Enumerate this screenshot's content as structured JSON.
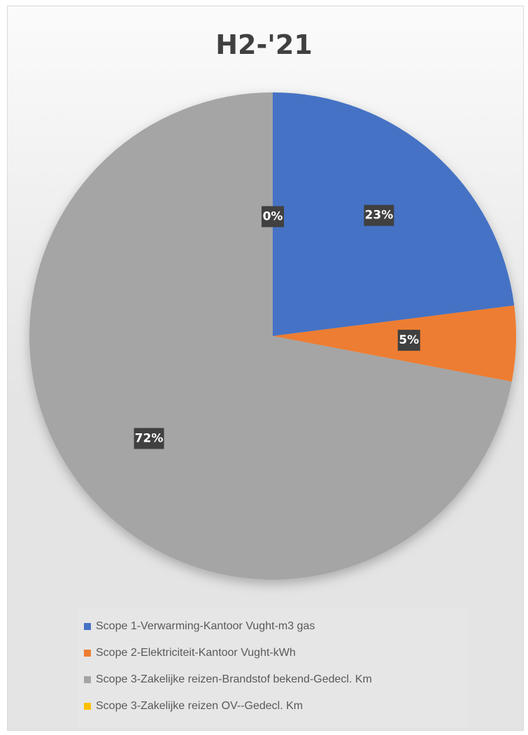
{
  "chart_data": {
    "type": "pie",
    "title": "H2-'21",
    "slices": [
      {
        "label": "Scope 1-Verwarming-Kantoor Vught-m3 gas",
        "value": 23,
        "display": "23%",
        "color": "#4472c4"
      },
      {
        "label": "Scope 2-Elektriciteit-Kantoor Vught-kWh",
        "value": 5,
        "display": "5%",
        "color": "#ed7d31"
      },
      {
        "label": "Scope 3-Zakelijke reizen-Brandstof bekend-Gedecl. Km",
        "value": 72,
        "display": "72%",
        "color": "#a5a5a5"
      },
      {
        "label": "Scope 3-Zakelijke reizen OV--Gedecl. Km",
        "value": 0,
        "display": "0%",
        "color": "#ffc000"
      }
    ],
    "legend_position": "bottom"
  }
}
